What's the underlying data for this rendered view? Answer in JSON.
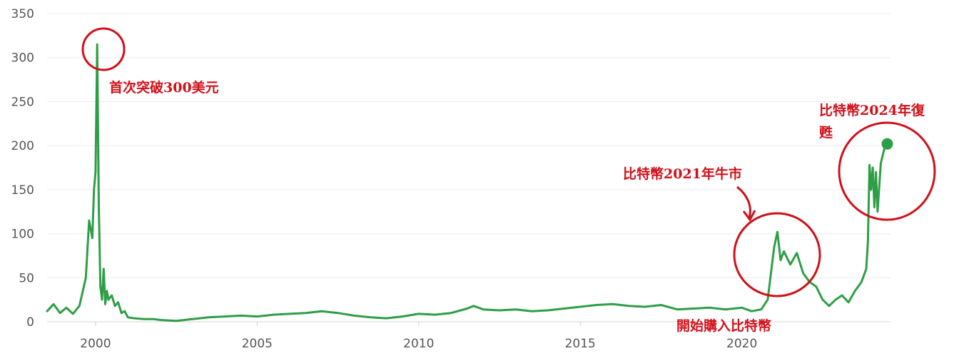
{
  "chart_data": {
    "type": "line",
    "title": "",
    "xlabel": "",
    "ylabel": "",
    "xlim": [
      1998.5,
      2024.6
    ],
    "ylim": [
      0,
      350
    ],
    "grid": true,
    "x_ticks": [
      2000,
      2005,
      2010,
      2015,
      2020
    ],
    "x_tick_labels": [
      "2000",
      "2005",
      "2010",
      "2015",
      "2020"
    ],
    "y_ticks": [
      0,
      50,
      100,
      150,
      200,
      250,
      300,
      350
    ],
    "y_tick_labels": [
      "0",
      "50",
      "100",
      "150",
      "200",
      "250",
      "300",
      "350"
    ],
    "series": [
      {
        "color": "#2e9e46",
        "x": [
          1998.5,
          1998.7,
          1998.9,
          1999.1,
          1999.3,
          1999.5,
          1999.7,
          1999.8,
          1999.9,
          1999.95,
          2000.0,
          2000.05,
          2000.1,
          2000.15,
          2000.2,
          2000.25,
          2000.3,
          2000.35,
          2000.4,
          2000.5,
          2000.6,
          2000.7,
          2000.8,
          2000.9,
          2001.0,
          2001.2,
          2001.5,
          2001.8,
          2002.0,
          2002.5,
          2003.0,
          2003.5,
          2004.0,
          2004.5,
          2005.0,
          2005.5,
          2006.0,
          2006.5,
          2007.0,
          2007.5,
          2008.0,
          2008.5,
          2009.0,
          2009.5,
          2010.0,
          2010.5,
          2011.0,
          2011.5,
          2011.7,
          2012.0,
          2012.5,
          2013.0,
          2013.5,
          2014.0,
          2014.5,
          2015.0,
          2015.5,
          2016.0,
          2016.5,
          2017.0,
          2017.5,
          2018.0,
          2018.5,
          2019.0,
          2019.5,
          2020.0,
          2020.3,
          2020.6,
          2020.8,
          2021.0,
          2021.1,
          2021.2,
          2021.3,
          2021.5,
          2021.7,
          2021.9,
          2022.1,
          2022.3,
          2022.5,
          2022.7,
          2022.9,
          2023.1,
          2023.3,
          2023.5,
          2023.7,
          2023.85,
          2023.9,
          2023.95,
          2024.0,
          2024.05,
          2024.1,
          2024.15,
          2024.2,
          2024.3,
          2024.4,
          2024.5
        ],
        "values": [
          12,
          20,
          10,
          16,
          9,
          18,
          50,
          115,
          95,
          150,
          170,
          315,
          130,
          40,
          25,
          60,
          20,
          35,
          25,
          30,
          18,
          22,
          10,
          12,
          5,
          4,
          3,
          3,
          2,
          1,
          3,
          5,
          6,
          7,
          6,
          8,
          9,
          10,
          12,
          10,
          7,
          5,
          4,
          6,
          9,
          8,
          10,
          15,
          18,
          14,
          13,
          14,
          12,
          13,
          15,
          17,
          19,
          20,
          18,
          17,
          19,
          14,
          15,
          16,
          14,
          16,
          12,
          14,
          25,
          85,
          102,
          70,
          80,
          65,
          78,
          55,
          45,
          40,
          25,
          18,
          25,
          30,
          22,
          35,
          45,
          60,
          90,
          178,
          150,
          175,
          130,
          170,
          125,
          180,
          195,
          205
        ]
      }
    ],
    "end_marker": {
      "x": 2024.5,
      "y": 202
    },
    "annotations": [
      {
        "text": "首次突破300美元"
      },
      {
        "text": "比特幣2021年牛市"
      },
      {
        "text": "開始購入比特幣"
      },
      {
        "text": "比特幣2024年復"
      },
      {
        "text": "甦"
      }
    ]
  }
}
